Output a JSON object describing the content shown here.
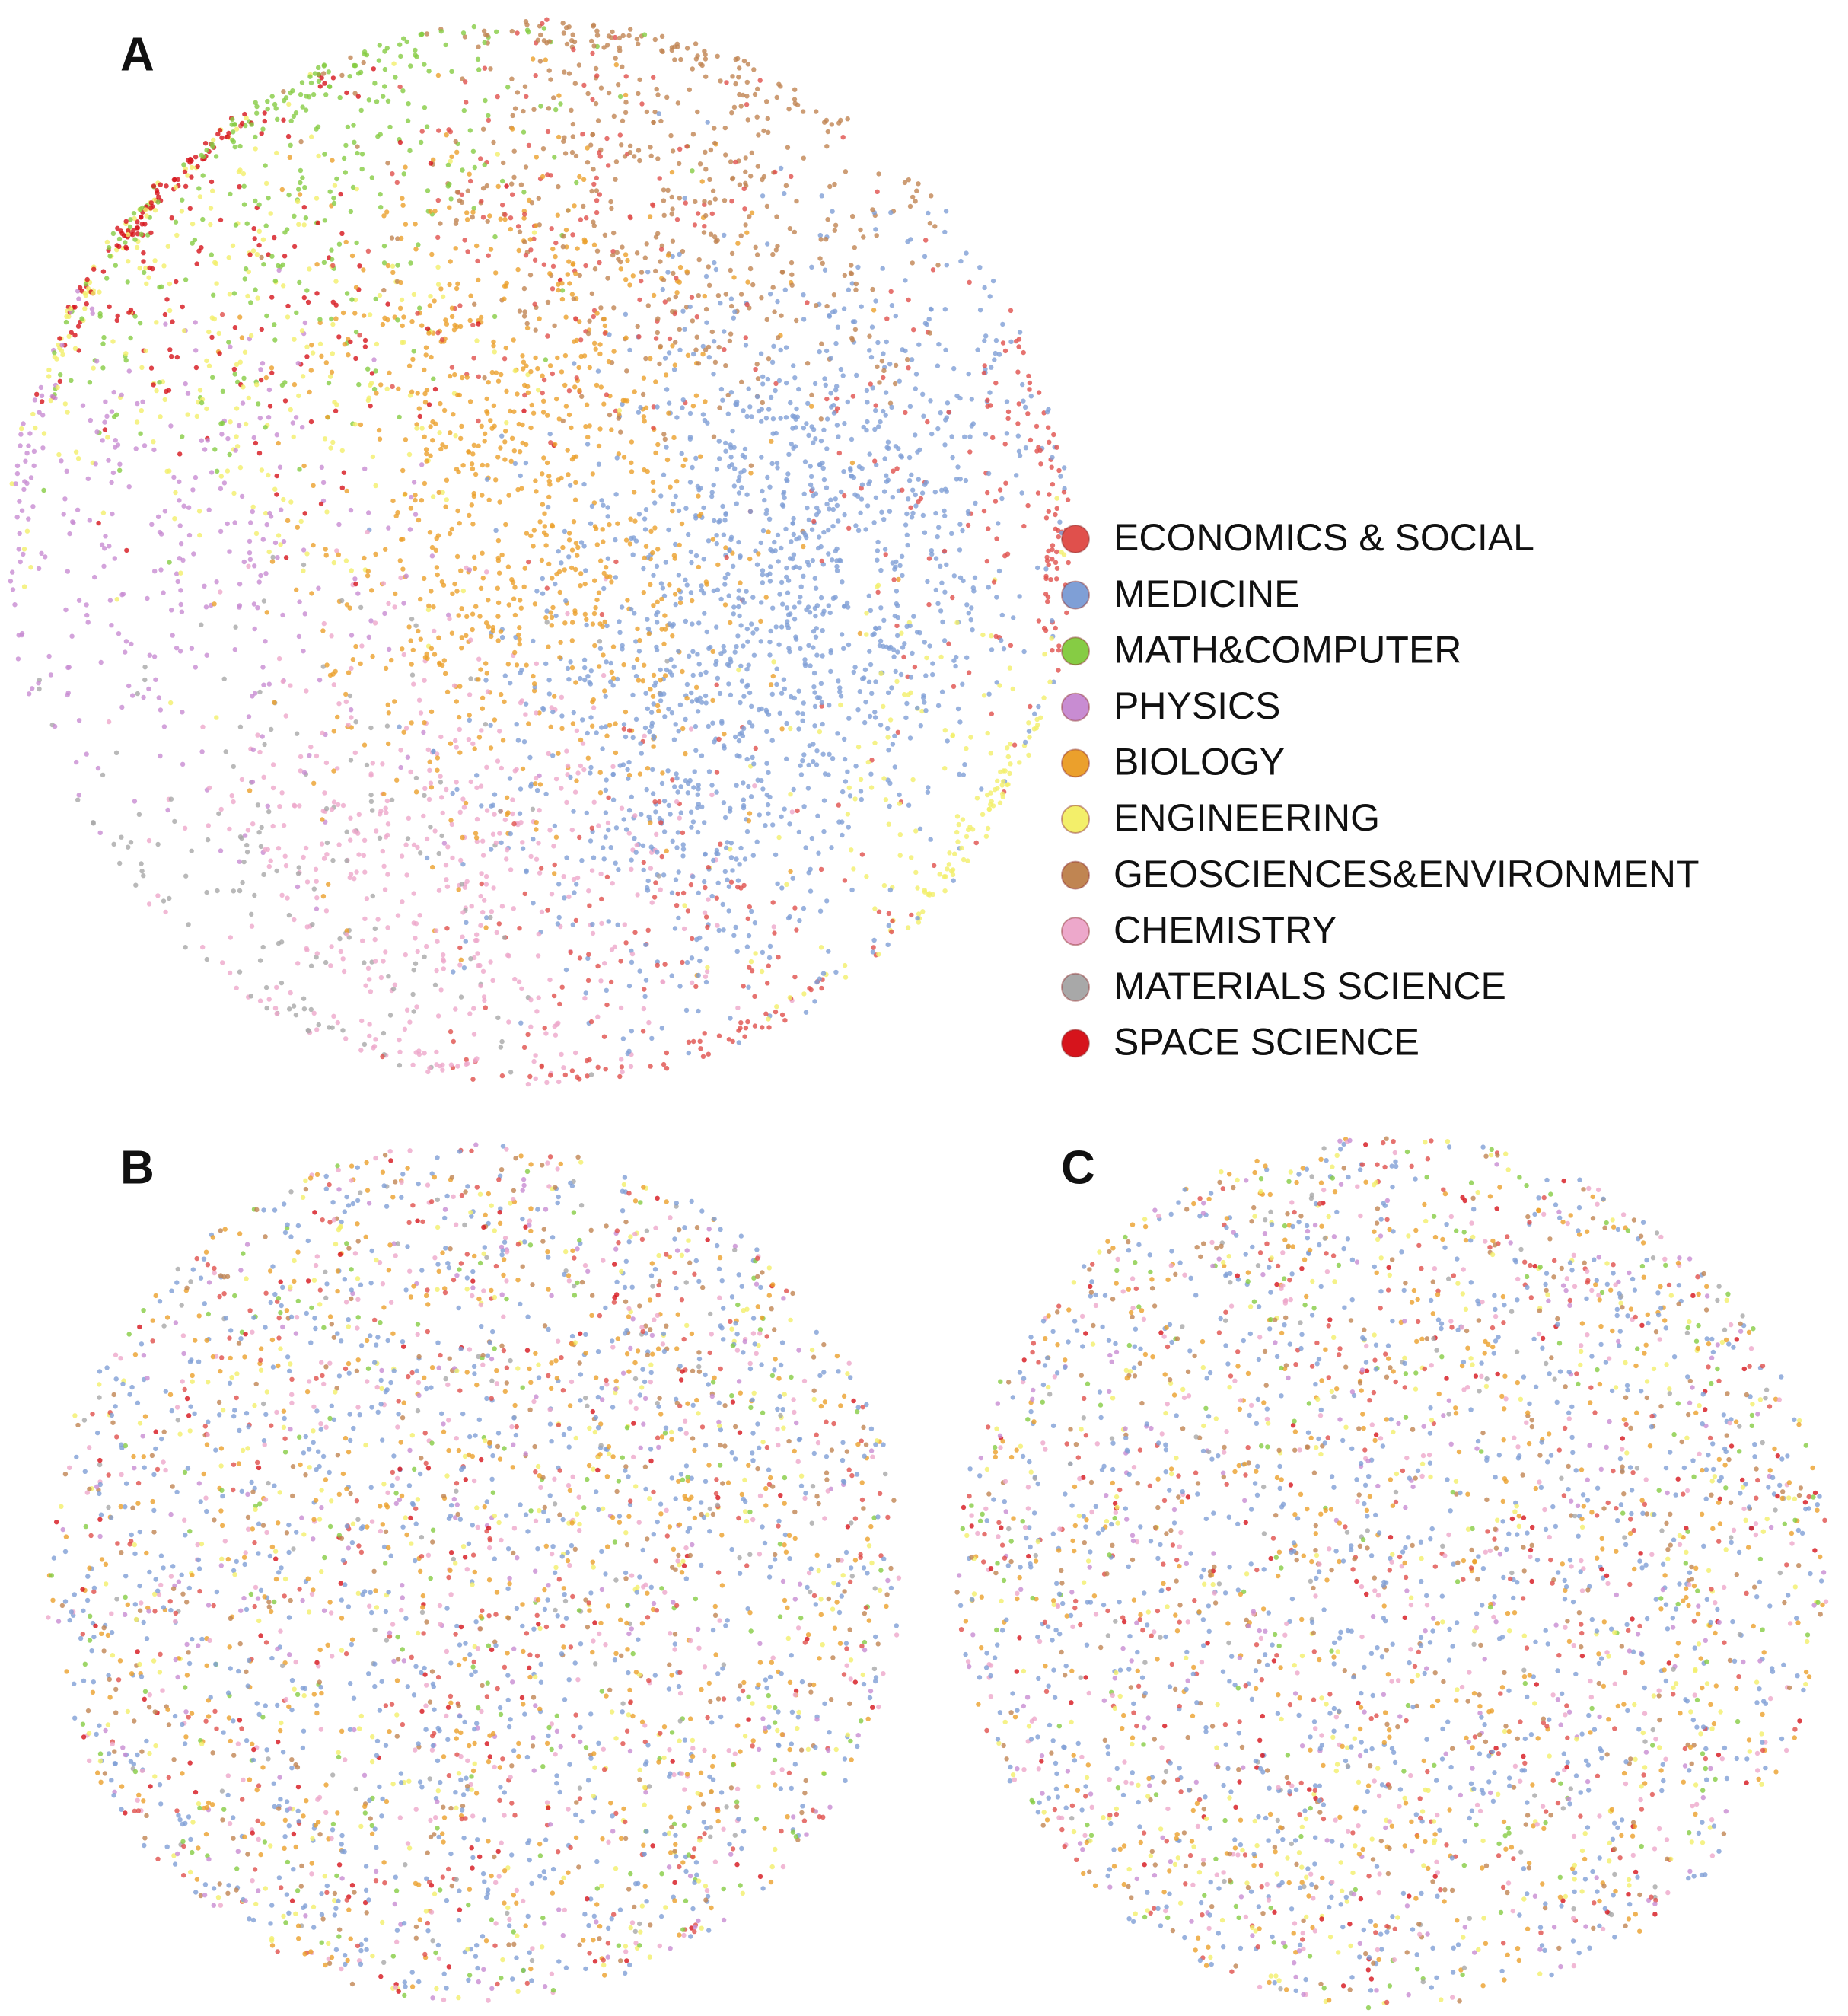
{
  "panels": [
    {
      "label": "A"
    },
    {
      "label": "B"
    },
    {
      "label": "C"
    }
  ],
  "legend": {
    "items": [
      {
        "label": "ECONOMICS & SOCIAL",
        "color": "#e0504c"
      },
      {
        "label": "MEDICINE",
        "color": "#7f9fd6"
      },
      {
        "label": "MATH&COMPUTER",
        "color": "#86cc44"
      },
      {
        "label": "PHYSICS",
        "color": "#c88cd2"
      },
      {
        "label": "BIOLOGY",
        "color": "#eba02c"
      },
      {
        "label": "ENGINEERING",
        "color": "#f3ef6a"
      },
      {
        "label": "GEOSCIENCES&ENVIRONMENT",
        "color": "#c08552"
      },
      {
        "label": "CHEMISTRY",
        "color": "#eda8cb"
      },
      {
        "label": "MATERIALS SCIENCE",
        "color": "#a8a8a8"
      },
      {
        "label": "SPACE SCIENCE",
        "color": "#d6141c"
      }
    ]
  }
}
